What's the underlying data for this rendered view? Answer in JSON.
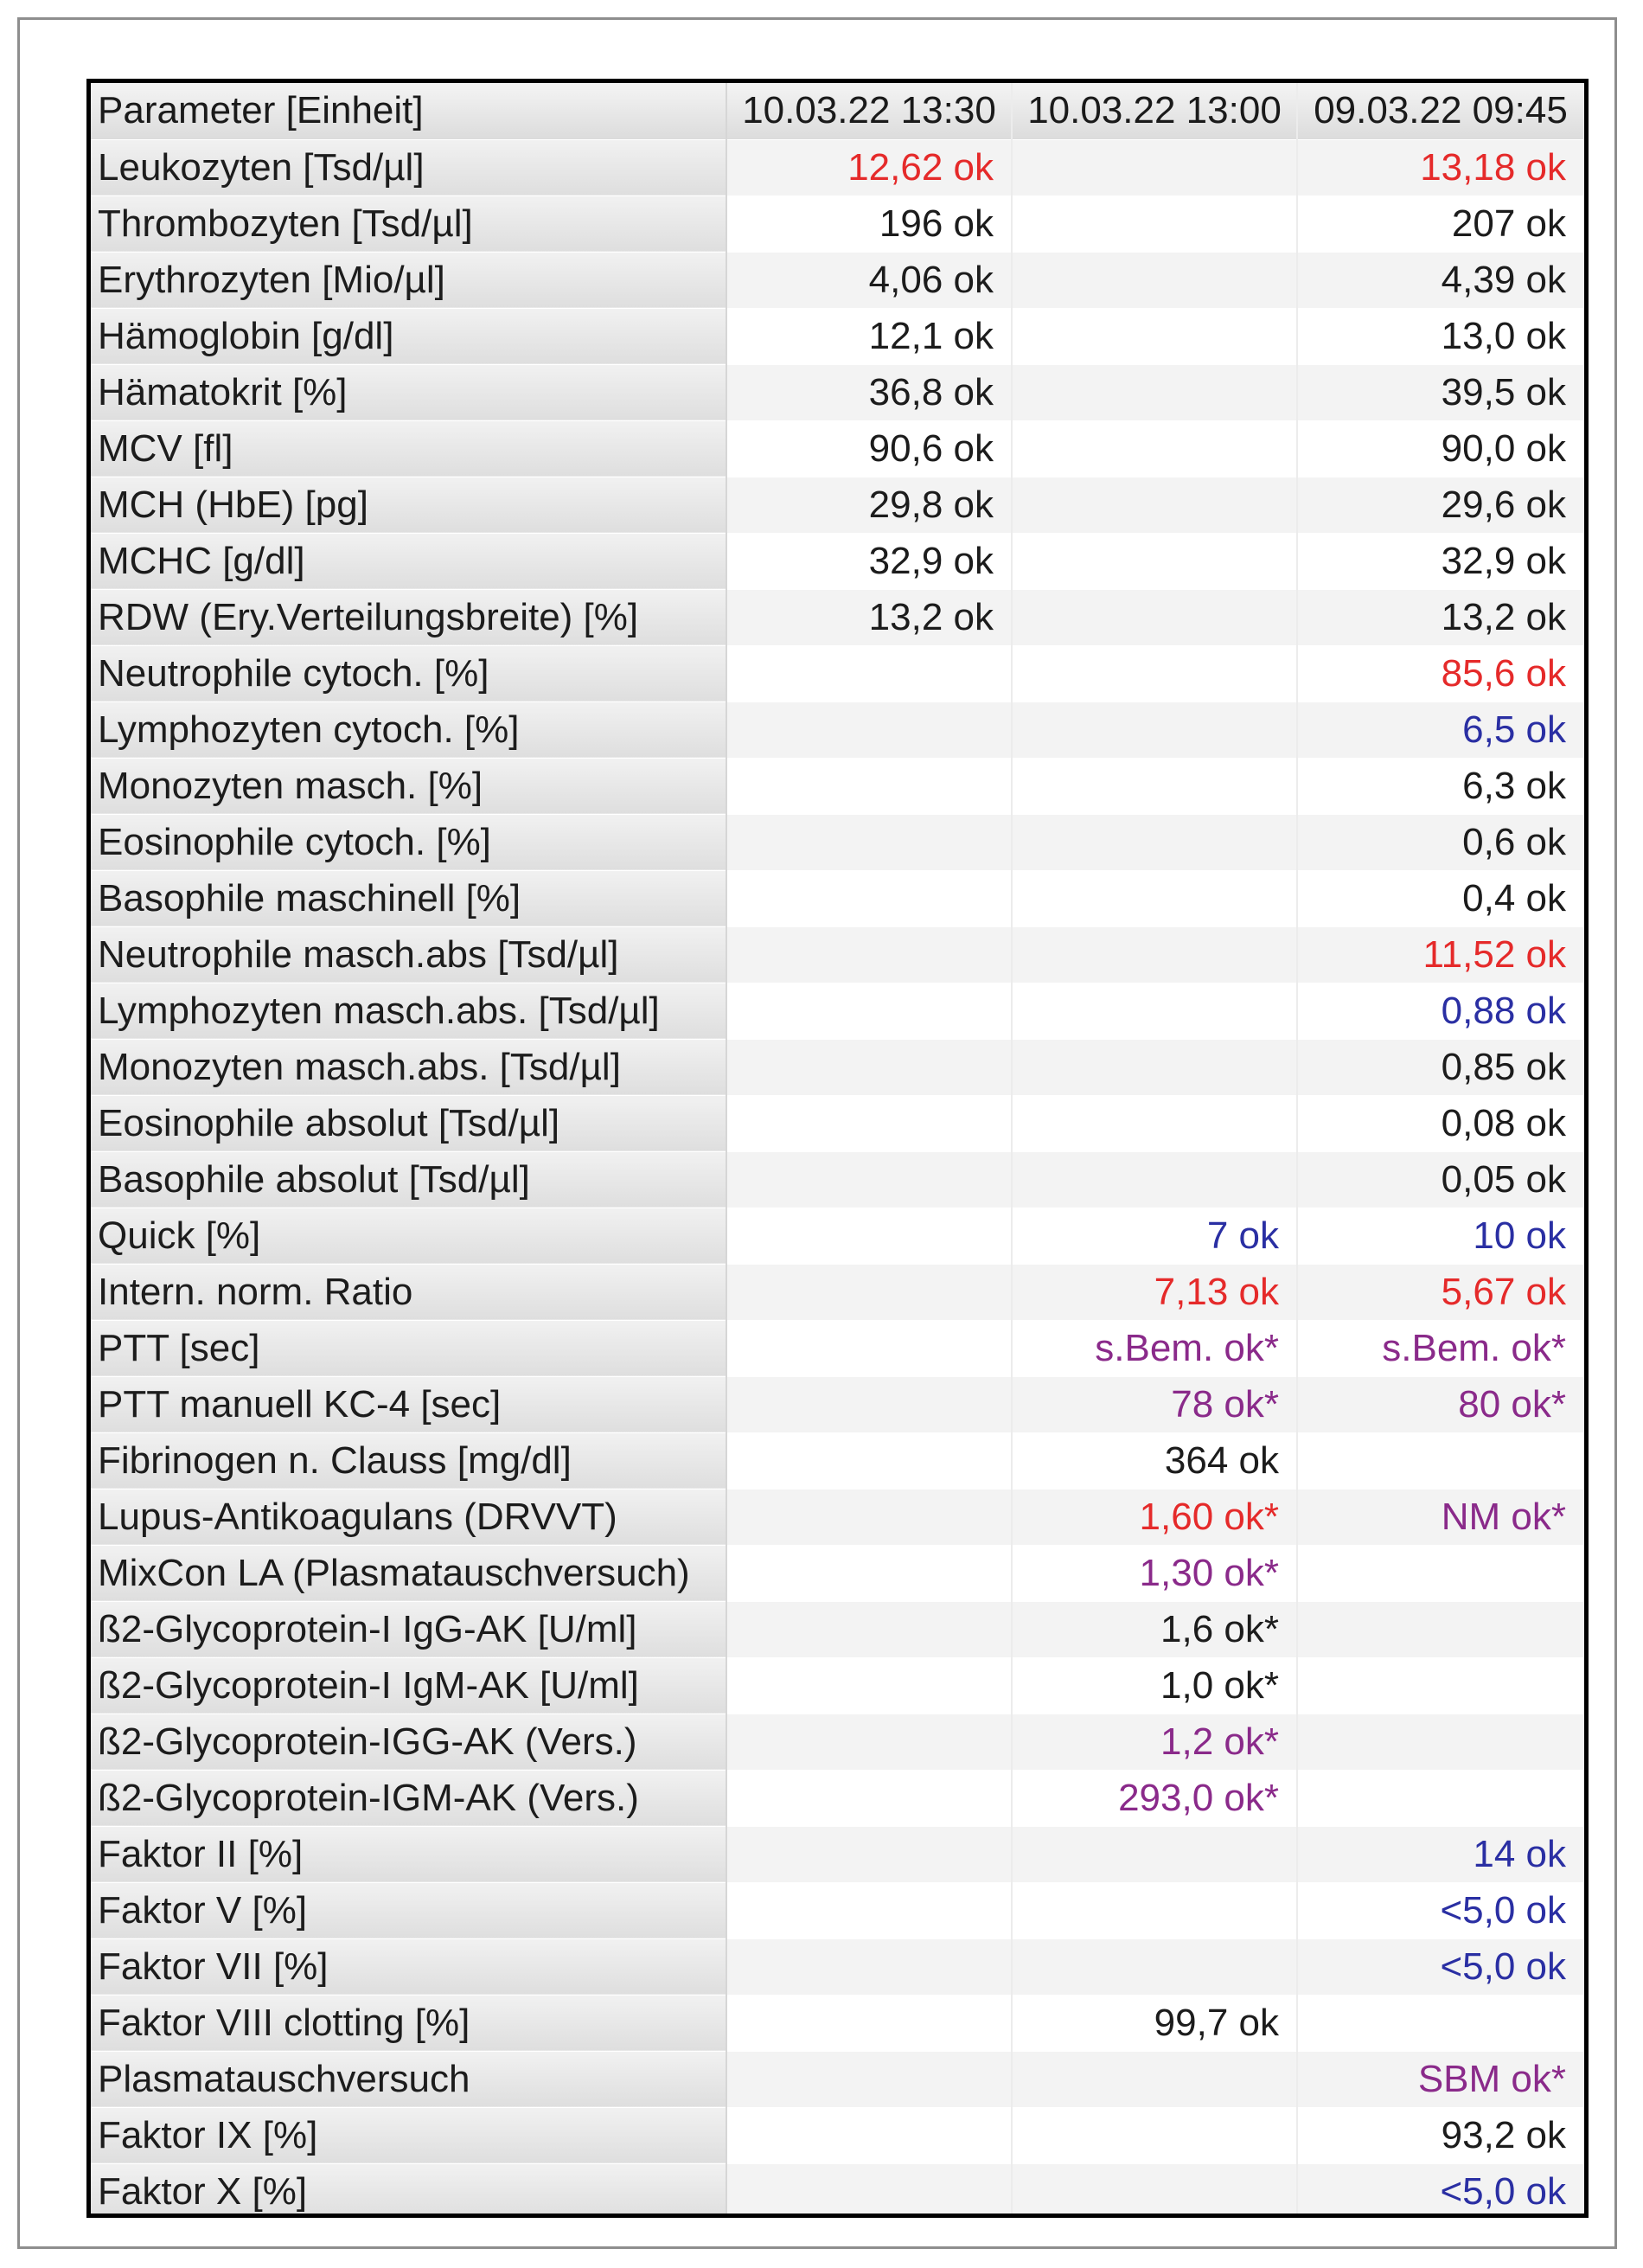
{
  "table": {
    "header": [
      "Parameter [Einheit]",
      "10.03.22 13:30",
      "10.03.22 13:00",
      "09.03.22 09:45"
    ],
    "rows": [
      {
        "label": "Leukozyten [Tsd/µl]",
        "cells": [
          {
            "text": "12,62 ok",
            "flag": "red"
          },
          {
            "text": "",
            "flag": ""
          },
          {
            "text": "13,18 ok",
            "flag": "red"
          }
        ]
      },
      {
        "label": "Thrombozyten [Tsd/µl]",
        "cells": [
          {
            "text": "196 ok",
            "flag": ""
          },
          {
            "text": "",
            "flag": ""
          },
          {
            "text": "207 ok",
            "flag": ""
          }
        ]
      },
      {
        "label": "Erythrozyten [Mio/µl]",
        "cells": [
          {
            "text": "4,06 ok",
            "flag": ""
          },
          {
            "text": "",
            "flag": ""
          },
          {
            "text": "4,39 ok",
            "flag": ""
          }
        ]
      },
      {
        "label": "Hämoglobin [g/dl]",
        "cells": [
          {
            "text": "12,1 ok",
            "flag": ""
          },
          {
            "text": "",
            "flag": ""
          },
          {
            "text": "13,0 ok",
            "flag": ""
          }
        ]
      },
      {
        "label": "Hämatokrit [%]",
        "cells": [
          {
            "text": "36,8 ok",
            "flag": ""
          },
          {
            "text": "",
            "flag": ""
          },
          {
            "text": "39,5 ok",
            "flag": ""
          }
        ]
      },
      {
        "label": "MCV [fl]",
        "cells": [
          {
            "text": "90,6 ok",
            "flag": ""
          },
          {
            "text": "",
            "flag": ""
          },
          {
            "text": "90,0 ok",
            "flag": ""
          }
        ]
      },
      {
        "label": "MCH (HbE) [pg]",
        "cells": [
          {
            "text": "29,8 ok",
            "flag": ""
          },
          {
            "text": "",
            "flag": ""
          },
          {
            "text": "29,6 ok",
            "flag": ""
          }
        ]
      },
      {
        "label": "MCHC [g/dl]",
        "cells": [
          {
            "text": "32,9 ok",
            "flag": ""
          },
          {
            "text": "",
            "flag": ""
          },
          {
            "text": "32,9 ok",
            "flag": ""
          }
        ]
      },
      {
        "label": "RDW (Ery.Verteilungsbreite) [%]",
        "cells": [
          {
            "text": "13,2 ok",
            "flag": ""
          },
          {
            "text": "",
            "flag": ""
          },
          {
            "text": "13,2 ok",
            "flag": ""
          }
        ]
      },
      {
        "label": "Neutrophile cytoch. [%]",
        "cells": [
          {
            "text": "",
            "flag": ""
          },
          {
            "text": "",
            "flag": ""
          },
          {
            "text": "85,6 ok",
            "flag": "red"
          }
        ]
      },
      {
        "label": "Lymphozyten cytoch. [%]",
        "cells": [
          {
            "text": "",
            "flag": ""
          },
          {
            "text": "",
            "flag": ""
          },
          {
            "text": "6,5 ok",
            "flag": "blue"
          }
        ]
      },
      {
        "label": "Monozyten masch. [%]",
        "cells": [
          {
            "text": "",
            "flag": ""
          },
          {
            "text": "",
            "flag": ""
          },
          {
            "text": "6,3 ok",
            "flag": ""
          }
        ]
      },
      {
        "label": "Eosinophile cytoch. [%]",
        "cells": [
          {
            "text": "",
            "flag": ""
          },
          {
            "text": "",
            "flag": ""
          },
          {
            "text": "0,6 ok",
            "flag": ""
          }
        ]
      },
      {
        "label": "Basophile maschinell [%]",
        "cells": [
          {
            "text": "",
            "flag": ""
          },
          {
            "text": "",
            "flag": ""
          },
          {
            "text": "0,4 ok",
            "flag": ""
          }
        ]
      },
      {
        "label": "Neutrophile masch.abs [Tsd/µl]",
        "cells": [
          {
            "text": "",
            "flag": ""
          },
          {
            "text": "",
            "flag": ""
          },
          {
            "text": "11,52 ok",
            "flag": "red"
          }
        ]
      },
      {
        "label": "Lymphozyten masch.abs. [Tsd/µl]",
        "cells": [
          {
            "text": "",
            "flag": ""
          },
          {
            "text": "",
            "flag": ""
          },
          {
            "text": "0,88 ok",
            "flag": "blue"
          }
        ]
      },
      {
        "label": "Monozyten masch.abs. [Tsd/µl]",
        "cells": [
          {
            "text": "",
            "flag": ""
          },
          {
            "text": "",
            "flag": ""
          },
          {
            "text": "0,85 ok",
            "flag": ""
          }
        ]
      },
      {
        "label": "Eosinophile absolut [Tsd/µl]",
        "cells": [
          {
            "text": "",
            "flag": ""
          },
          {
            "text": "",
            "flag": ""
          },
          {
            "text": "0,08 ok",
            "flag": ""
          }
        ]
      },
      {
        "label": "Basophile absolut [Tsd/µl]",
        "cells": [
          {
            "text": "",
            "flag": ""
          },
          {
            "text": "",
            "flag": ""
          },
          {
            "text": "0,05 ok",
            "flag": ""
          }
        ]
      },
      {
        "label": "Quick [%]",
        "cells": [
          {
            "text": "",
            "flag": ""
          },
          {
            "text": "7 ok",
            "flag": "blue"
          },
          {
            "text": "10 ok",
            "flag": "blue"
          }
        ]
      },
      {
        "label": "Intern. norm. Ratio",
        "cells": [
          {
            "text": "",
            "flag": ""
          },
          {
            "text": "7,13 ok",
            "flag": "red"
          },
          {
            "text": "5,67 ok",
            "flag": "red"
          }
        ]
      },
      {
        "label": "PTT [sec]",
        "cells": [
          {
            "text": "",
            "flag": ""
          },
          {
            "text": "s.Bem. ok*",
            "flag": "purple"
          },
          {
            "text": "s.Bem. ok*",
            "flag": "purple"
          }
        ]
      },
      {
        "label": "PTT manuell KC-4 [sec]",
        "cells": [
          {
            "text": "",
            "flag": ""
          },
          {
            "text": "78 ok*",
            "flag": "purple"
          },
          {
            "text": "80 ok*",
            "flag": "purple"
          }
        ]
      },
      {
        "label": "Fibrinogen n. Clauss [mg/dl]",
        "cells": [
          {
            "text": "",
            "flag": ""
          },
          {
            "text": "364 ok",
            "flag": ""
          },
          {
            "text": "",
            "flag": ""
          }
        ]
      },
      {
        "label": "Lupus-Antikoagulans (DRVVT)",
        "cells": [
          {
            "text": "",
            "flag": ""
          },
          {
            "text": "1,60 ok*",
            "flag": "red"
          },
          {
            "text": "NM ok*",
            "flag": "purple"
          }
        ]
      },
      {
        "label": "MixCon LA (Plasmatauschversuch)",
        "cells": [
          {
            "text": "",
            "flag": ""
          },
          {
            "text": "1,30 ok*",
            "flag": "purple"
          },
          {
            "text": "",
            "flag": ""
          }
        ]
      },
      {
        "label": "ß2-Glycoprotein-I IgG-AK [U/ml]",
        "cells": [
          {
            "text": "",
            "flag": ""
          },
          {
            "text": "1,6 ok*",
            "flag": ""
          },
          {
            "text": "",
            "flag": ""
          }
        ]
      },
      {
        "label": "ß2-Glycoprotein-I IgM-AK [U/ml]",
        "cells": [
          {
            "text": "",
            "flag": ""
          },
          {
            "text": "1,0 ok*",
            "flag": ""
          },
          {
            "text": "",
            "flag": ""
          }
        ]
      },
      {
        "label": "ß2-Glycoprotein-IGG-AK (Vers.)",
        "cells": [
          {
            "text": "",
            "flag": ""
          },
          {
            "text": "1,2 ok*",
            "flag": "purple"
          },
          {
            "text": "",
            "flag": ""
          }
        ]
      },
      {
        "label": "ß2-Glycoprotein-IGM-AK (Vers.)",
        "cells": [
          {
            "text": "",
            "flag": ""
          },
          {
            "text": "293,0 ok*",
            "flag": "purple"
          },
          {
            "text": "",
            "flag": ""
          }
        ]
      },
      {
        "label": "Faktor II [%]",
        "cells": [
          {
            "text": "",
            "flag": ""
          },
          {
            "text": "",
            "flag": ""
          },
          {
            "text": "14 ok",
            "flag": "blue"
          }
        ]
      },
      {
        "label": "Faktor V [%]",
        "cells": [
          {
            "text": "",
            "flag": ""
          },
          {
            "text": "",
            "flag": ""
          },
          {
            "text": "<5,0 ok",
            "flag": "blue"
          }
        ]
      },
      {
        "label": "Faktor VII [%]",
        "cells": [
          {
            "text": "",
            "flag": ""
          },
          {
            "text": "",
            "flag": ""
          },
          {
            "text": "<5,0 ok",
            "flag": "blue"
          }
        ]
      },
      {
        "label": "Faktor VIII clotting [%]",
        "cells": [
          {
            "text": "",
            "flag": ""
          },
          {
            "text": "99,7 ok",
            "flag": ""
          },
          {
            "text": "",
            "flag": ""
          }
        ]
      },
      {
        "label": "Plasmatauschversuch",
        "cells": [
          {
            "text": "",
            "flag": ""
          },
          {
            "text": "",
            "flag": ""
          },
          {
            "text": "SBM ok*",
            "flag": "purple"
          }
        ]
      },
      {
        "label": "Faktor IX [%]",
        "cells": [
          {
            "text": "",
            "flag": ""
          },
          {
            "text": "",
            "flag": ""
          },
          {
            "text": "93,2 ok",
            "flag": ""
          }
        ]
      },
      {
        "label": "Faktor X [%]",
        "cells": [
          {
            "text": "",
            "flag": ""
          },
          {
            "text": "",
            "flag": ""
          },
          {
            "text": "<5,0 ok",
            "flag": "blue"
          }
        ]
      }
    ]
  }
}
